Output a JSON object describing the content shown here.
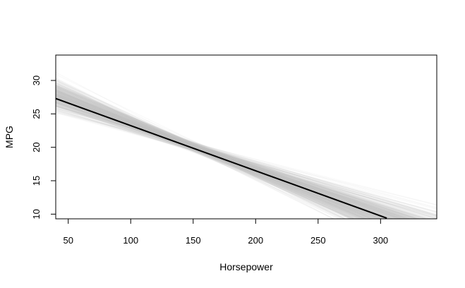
{
  "chart_data": {
    "type": "line",
    "title": "",
    "xlabel": "Horsepower",
    "ylabel": "MPG",
    "xlim": [
      40,
      345
    ],
    "ylim": [
      9.3,
      33.8
    ],
    "x_ticks": [
      50,
      100,
      150,
      200,
      250,
      300
    ],
    "y_ticks": [
      10,
      15,
      20,
      25,
      30
    ],
    "grid": false,
    "legend": "none",
    "series": [
      {
        "role": "fitted-line",
        "color": "#000000",
        "x": [
          40,
          305
        ],
        "y": [
          27.3,
          9.4
        ]
      },
      {
        "role": "bootstrap-lines",
        "color": "#c8c8c8",
        "pivot": [
          150,
          20.1
        ],
        "slope_range": [
          -0.105,
          -0.035
        ]
      }
    ]
  }
}
